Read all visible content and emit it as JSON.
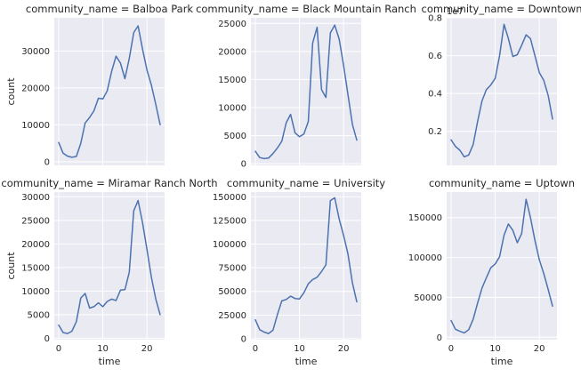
{
  "figure": {
    "background": "#ffffff",
    "panel_color": "#eaeaf2",
    "line_color": "#4c72b0"
  },
  "chart_data": [
    {
      "type": "line",
      "title": "community_name = Balboa Park",
      "xlabel": "",
      "ylabel": "count",
      "xlim": [
        -1,
        24
      ],
      "ylim": [
        -1000,
        39000
      ],
      "xticks": [
        0,
        10,
        20
      ],
      "xtick_labels": [
        "",
        "",
        ""
      ],
      "yticks": [
        0,
        10000,
        20000,
        30000
      ],
      "ytick_labels": [
        "0",
        "10000",
        "20000",
        "30000"
      ],
      "grid": true,
      "x": [
        0,
        1,
        2,
        3,
        4,
        5,
        6,
        7,
        8,
        9,
        10,
        11,
        12,
        13,
        14,
        15,
        16,
        17,
        18,
        19,
        20,
        21,
        22,
        23
      ],
      "y": [
        5200,
        2300,
        1500,
        1200,
        1400,
        5000,
        10500,
        12000,
        13800,
        17200,
        17000,
        19200,
        24500,
        28600,
        26700,
        22500,
        28000,
        35000,
        36800,
        30500,
        24800,
        20800,
        15500,
        10000
      ]
    },
    {
      "type": "line",
      "title": "community_name = Black Mountain Ranch",
      "xlabel": "",
      "ylabel": "",
      "xlim": [
        -1,
        24
      ],
      "ylim": [
        -300,
        26000
      ],
      "xticks": [
        0,
        10,
        20
      ],
      "xtick_labels": [
        "",
        "",
        ""
      ],
      "yticks": [
        0,
        5000,
        10000,
        15000,
        20000,
        25000
      ],
      "ytick_labels": [
        "0",
        "5000",
        "10000",
        "15000",
        "20000",
        "25000"
      ],
      "grid": true,
      "x": [
        0,
        1,
        2,
        3,
        4,
        5,
        6,
        7,
        8,
        9,
        10,
        11,
        12,
        13,
        14,
        15,
        16,
        17,
        18,
        19,
        20,
        21,
        22,
        23
      ],
      "y": [
        2200,
        1100,
        900,
        1000,
        1800,
        2800,
        4000,
        7300,
        8800,
        5500,
        4800,
        5300,
        7500,
        21500,
        24300,
        13200,
        11800,
        23300,
        24700,
        22200,
        17500,
        12300,
        7000,
        4200
      ]
    },
    {
      "type": "line",
      "title": "community_name = Downtown",
      "xlabel": "",
      "ylabel": "",
      "offset_text": "1e7",
      "xlim": [
        -1,
        24
      ],
      "ylim": [
        0.02,
        0.8
      ],
      "xticks": [
        0,
        10,
        20
      ],
      "xtick_labels": [
        "",
        "",
        ""
      ],
      "yticks": [
        0.2,
        0.4,
        0.6,
        0.8
      ],
      "ytick_labels": [
        "0.2",
        "0.4",
        "0.6",
        "0.8"
      ],
      "grid": true,
      "x": [
        0,
        1,
        2,
        3,
        4,
        5,
        6,
        7,
        8,
        9,
        10,
        11,
        12,
        13,
        14,
        15,
        16,
        17,
        18,
        19,
        20,
        21,
        22,
        23
      ],
      "y": [
        0.155,
        0.12,
        0.1,
        0.065,
        0.075,
        0.13,
        0.25,
        0.36,
        0.42,
        0.445,
        0.48,
        0.6,
        0.765,
        0.69,
        0.595,
        0.605,
        0.655,
        0.71,
        0.69,
        0.6,
        0.51,
        0.47,
        0.39,
        0.265
      ]
    },
    {
      "type": "line",
      "title": "community_name = Miramar Ranch North",
      "xlabel": "time",
      "ylabel": "count",
      "xlim": [
        -1,
        24
      ],
      "ylim": [
        -300,
        31000
      ],
      "xticks": [
        0,
        10,
        20
      ],
      "xtick_labels": [
        "0",
        "10",
        "20"
      ],
      "yticks": [
        0,
        5000,
        10000,
        15000,
        20000,
        25000,
        30000
      ],
      "ytick_labels": [
        "0",
        "5000",
        "10000",
        "15000",
        "20000",
        "25000",
        "30000"
      ],
      "grid": true,
      "x": [
        0,
        1,
        2,
        3,
        4,
        5,
        6,
        7,
        8,
        9,
        10,
        11,
        12,
        13,
        14,
        15,
        16,
        17,
        18,
        19,
        20,
        21,
        22,
        23
      ],
      "y": [
        2800,
        1200,
        1000,
        1500,
        3500,
        8500,
        9500,
        6400,
        6700,
        7500,
        6700,
        7800,
        8300,
        8000,
        10200,
        10300,
        14000,
        27000,
        29200,
        24500,
        18800,
        13000,
        8300,
        5000
      ]
    },
    {
      "type": "line",
      "title": "community_name = University",
      "xlabel": "time",
      "ylabel": "",
      "xlim": [
        -1,
        24
      ],
      "ylim": [
        -1000,
        155000
      ],
      "xticks": [
        0,
        10,
        20
      ],
      "xtick_labels": [
        "0",
        "10",
        "20"
      ],
      "yticks": [
        0,
        25000,
        50000,
        75000,
        100000,
        125000,
        150000
      ],
      "ytick_labels": [
        "0",
        "25000",
        "50000",
        "75000",
        "100000",
        "125000",
        "150000"
      ],
      "grid": true,
      "x": [
        0,
        1,
        2,
        3,
        4,
        5,
        6,
        7,
        8,
        9,
        10,
        11,
        12,
        13,
        14,
        15,
        16,
        17,
        18,
        19,
        20,
        21,
        22,
        23
      ],
      "y": [
        20000,
        9500,
        7000,
        5500,
        9000,
        25500,
        40000,
        41500,
        45000,
        42500,
        42000,
        48500,
        58000,
        62500,
        65000,
        71000,
        78000,
        146000,
        149000,
        126500,
        109000,
        89500,
        59000,
        39000
      ]
    },
    {
      "type": "line",
      "title": "community_name = Uptown",
      "xlabel": "time",
      "ylabel": "",
      "xlim": [
        -1,
        24
      ],
      "ylim": [
        -3000,
        182000
      ],
      "xticks": [
        0,
        10,
        20
      ],
      "xtick_labels": [
        "0",
        "10",
        "20"
      ],
      "yticks": [
        0,
        50000,
        100000,
        150000
      ],
      "ytick_labels": [
        "0",
        "50000",
        "100000",
        "150000"
      ],
      "grid": true,
      "x": [
        0,
        1,
        2,
        3,
        4,
        5,
        6,
        7,
        8,
        9,
        10,
        11,
        12,
        13,
        14,
        15,
        16,
        17,
        18,
        19,
        20,
        21,
        22,
        23
      ],
      "y": [
        21000,
        10000,
        7500,
        5500,
        9500,
        22500,
        42500,
        61500,
        74500,
        87000,
        92000,
        101000,
        128000,
        142000,
        134000,
        118500,
        130000,
        173000,
        150000,
        121500,
        97000,
        80000,
        60000,
        39000
      ]
    }
  ]
}
